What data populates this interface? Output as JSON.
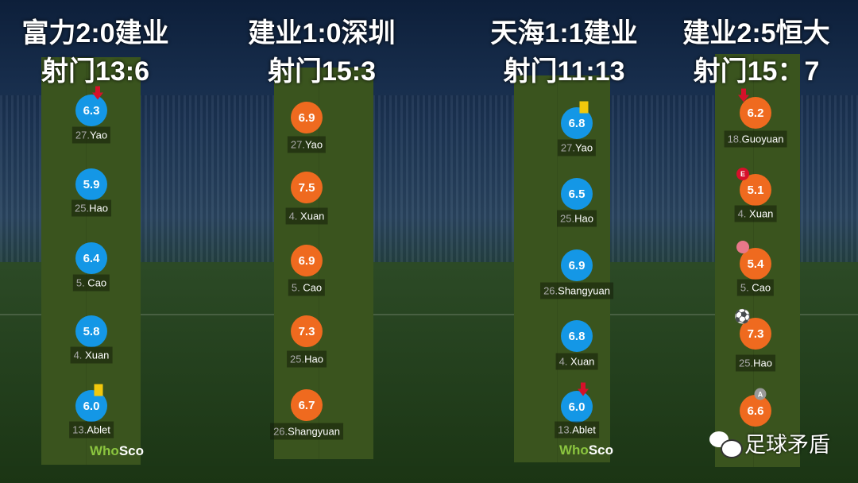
{
  "matches": [
    {
      "title": "富力2:0建业",
      "shots": "射门13:6",
      "color": "blue",
      "players": [
        {
          "rating": "6.3",
          "num": "27.",
          "name": "Yao",
          "badge": "sub-off-arrow"
        },
        {
          "rating": "5.9",
          "num": "25.",
          "name": "Hao",
          "badge": ""
        },
        {
          "rating": "6.4",
          "num": "5. ",
          "name": "Cao",
          "badge": ""
        },
        {
          "rating": "5.8",
          "num": "4. ",
          "name": "Xuan",
          "badge": ""
        },
        {
          "rating": "6.0",
          "num": "13.",
          "name": "Ablet",
          "badge": "yellow-card"
        }
      ]
    },
    {
      "title": "建业1:0深圳",
      "shots": "射门15:3",
      "color": "orange",
      "players": [
        {
          "rating": "6.9",
          "num": "27.",
          "name": "Yao",
          "badge": ""
        },
        {
          "rating": "7.5",
          "num": "4. ",
          "name": "Xuan",
          "badge": ""
        },
        {
          "rating": "6.9",
          "num": "5. ",
          "name": "Cao",
          "badge": ""
        },
        {
          "rating": "7.3",
          "num": "25.",
          "name": "Hao",
          "badge": ""
        },
        {
          "rating": "6.7",
          "num": "26.",
          "name": "Shangyuan",
          "badge": ""
        }
      ]
    },
    {
      "title": "天海1:1建业",
      "shots": "射门11:13",
      "color": "blue",
      "players": [
        {
          "rating": "6.8",
          "num": "27.",
          "name": "Yao",
          "badge": "yellow-card"
        },
        {
          "rating": "6.5",
          "num": "25.",
          "name": "Hao",
          "badge": ""
        },
        {
          "rating": "6.9",
          "num": "26.",
          "name": "Shangyuan",
          "badge": ""
        },
        {
          "rating": "6.8",
          "num": "4. ",
          "name": "Xuan",
          "badge": ""
        },
        {
          "rating": "6.0",
          "num": "13.",
          "name": "Ablet",
          "badge": "sub-off-arrow"
        }
      ]
    },
    {
      "title": "建业2:5恒大",
      "shots": "射门15：7",
      "color": "orange",
      "players": [
        {
          "rating": "6.2",
          "num": "18.",
          "name": "Guoyuan",
          "badge": "sub-off-arrow"
        },
        {
          "rating": "5.1",
          "num": "4. ",
          "name": "Xuan",
          "badge": "own-goal"
        },
        {
          "rating": "5.4",
          "num": "5. ",
          "name": "Cao",
          "badge": "injury"
        },
        {
          "rating": "7.3",
          "num": "25.",
          "name": "Hao",
          "badge": "goal-ball"
        },
        {
          "rating": "6.6",
          "num": "",
          "name": "",
          "badge": "assist"
        }
      ]
    }
  ],
  "whoscored": {
    "a": "Who",
    "b": "Sco"
  },
  "watermark": "足球矛盾",
  "badge_text": {
    "own_goal": "E",
    "assist": "A"
  },
  "colors": {
    "blue": "#1497e6",
    "orange": "#ef6a1f",
    "pitch": "#3a541e"
  }
}
